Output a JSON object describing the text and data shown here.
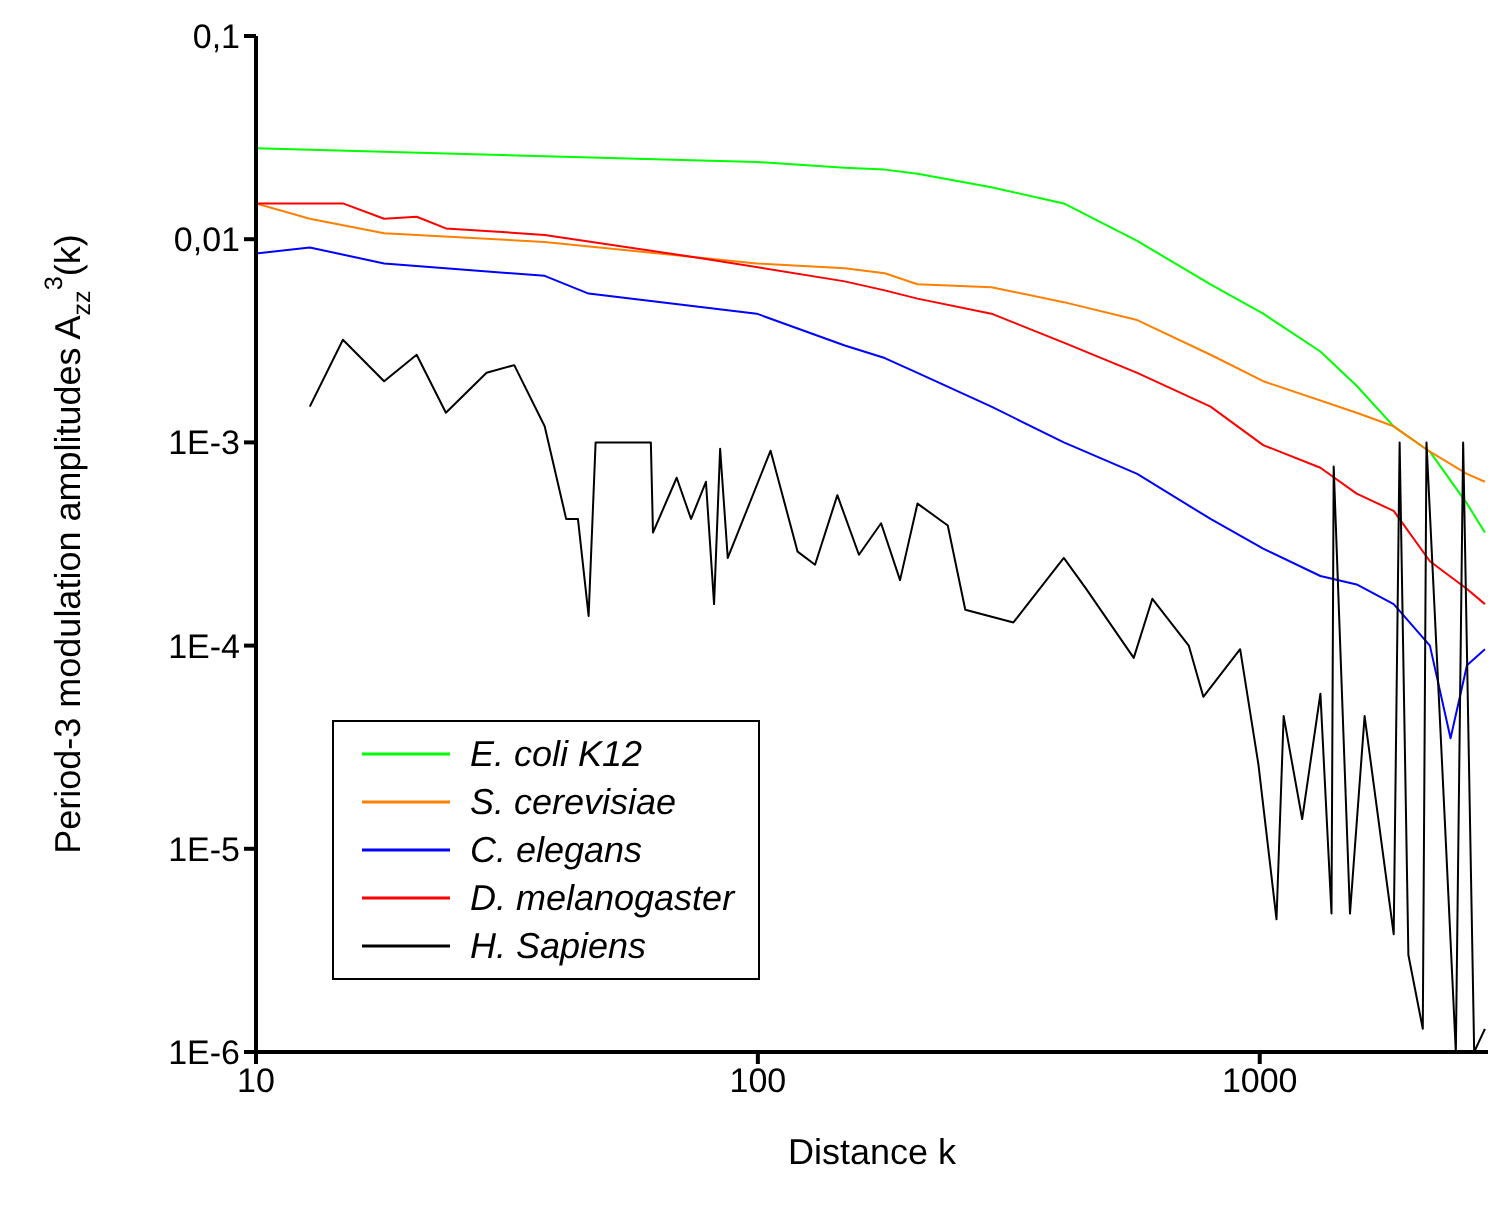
{
  "chart_data": {
    "type": "line",
    "xlabel": "Distance k",
    "ylabel": "Period-3 modulation amplitudes  A$_{zz}$$^{3}$(k)",
    "log": "xy",
    "grid": false,
    "legend": "bottom left",
    "marker": "none",
    "line_style": "solid",
    "xlim": [
      10,
      2850
    ],
    "xticks": [
      10,
      100,
      1000
    ],
    "ylim": [
      1e-06,
      0.1
    ],
    "yticks": [
      {
        "value": 0.1,
        "label": "0,1"
      },
      {
        "value": 0.01,
        "label": "0,01"
      },
      {
        "value": 0.001,
        "label": "1E-3"
      },
      {
        "value": 0.0001,
        "label": "1E-4"
      },
      {
        "value": 1e-05,
        "label": "1E-5"
      },
      {
        "value": 1e-06,
        "label": "1E-6"
      }
    ],
    "series": [
      {
        "name": "E. coli K12",
        "color": "#00ff00",
        "x": [
          10,
          99.5,
          149,
          179,
          208,
          292,
          407,
          570,
          798,
          1016,
          1321,
          1560,
          1849,
          2183,
          2588,
          2810
        ],
        "values": [
          0.028,
          0.024,
          0.0225,
          0.022,
          0.021,
          0.018,
          0.015,
          0.0098,
          0.006,
          0.0043,
          0.0028,
          0.0019,
          0.0012,
          0.0009,
          0.0005,
          0.00036
        ]
      },
      {
        "name": "S. cerevisiae",
        "color": "#ff8000",
        "x": [
          10,
          12.8,
          18,
          37.6,
          99.5,
          149,
          179,
          208,
          292,
          407,
          570,
          798,
          1016,
          1560,
          1849,
          2183,
          2588,
          2810
        ],
        "values": [
          0.015,
          0.0126,
          0.0107,
          0.0097,
          0.0076,
          0.0072,
          0.0068,
          0.006,
          0.0058,
          0.0049,
          0.004,
          0.0027,
          0.002,
          0.0014,
          0.0012,
          0.0009,
          0.0007,
          0.00064
        ]
      },
      {
        "name": "C. elegans",
        "color": "#0000ff",
        "x": [
          10,
          12.8,
          18,
          37.6,
          46,
          99.5,
          149,
          179,
          208,
          292,
          407,
          570,
          798,
          1016,
          1321,
          1560,
          1849,
          2183,
          2400,
          2588,
          2810
        ],
        "values": [
          0.0085,
          0.0091,
          0.0076,
          0.0066,
          0.0054,
          0.0043,
          0.003,
          0.0026,
          0.0022,
          0.0015,
          0.001,
          0.0007,
          0.00042,
          0.0003,
          0.00022,
          0.0002,
          0.00016,
          0.0001,
          3.5e-05,
          8e-05,
          9.6e-05
        ]
      },
      {
        "name": "D. melanogaster",
        "color": "#ff0000",
        "x": [
          10,
          14.9,
          18,
          20.9,
          23.9,
          37.6,
          78.8,
          149,
          179,
          208,
          292,
          407,
          570,
          798,
          1016,
          1321,
          1560,
          1849,
          2183,
          2588,
          2810
        ],
        "values": [
          0.015,
          0.015,
          0.0126,
          0.0129,
          0.0113,
          0.0105,
          0.008,
          0.0062,
          0.0056,
          0.0051,
          0.0043,
          0.0031,
          0.0022,
          0.0015,
          0.00097,
          0.00075,
          0.00056,
          0.00046,
          0.00026,
          0.00019,
          0.00016
        ]
      },
      {
        "name": "H. Sapiens",
        "color": "#000000",
        "x": [
          12.8,
          14.9,
          18,
          20.9,
          23.9,
          28.8,
          32.7,
          37.6,
          41.5,
          43.8,
          46,
          47.5,
          61.2,
          61.8,
          68.9,
          73.6,
          78.8,
          81.8,
          84.1,
          87.1,
          106,
          120,
          130,
          144,
          159,
          176,
          192,
          208,
          239,
          259,
          323,
          407,
          451,
          561,
          611,
          722,
          772,
          914,
          994,
          1080,
          1116,
          1215,
          1321,
          1390,
          1404,
          1513,
          1618,
          1849,
          1900,
          1978,
          2113,
          2149,
          2337,
          2459,
          2543,
          2675,
          2810
        ],
        "values": [
          0.0015,
          0.0032,
          0.002,
          0.0027,
          0.0014,
          0.0022,
          0.0024,
          0.0012,
          0.00042,
          0.00042,
          0.00014,
          0.001,
          0.001,
          0.00036,
          0.00067,
          0.00042,
          0.00064,
          0.00016,
          0.00093,
          0.00027,
          0.00091,
          0.00029,
          0.00025,
          0.00055,
          0.00028,
          0.0004,
          0.00021,
          0.0005,
          0.00039,
          0.00015,
          0.00013,
          0.00027,
          0.00019,
          8.7e-05,
          0.00017,
          0.0001,
          5.6e-05,
          9.6e-05,
          2.6e-05,
          4.5e-06,
          4.5e-05,
          1.4e-05,
          5.8e-05,
          4.8e-06,
          0.00076,
          4.8e-06,
          4.5e-05,
          3.8e-06,
          0.001,
          3e-06,
          1.3e-06,
          0.001,
          1.4e-05,
          1e-06,
          0.001,
          1e-06,
          1.3e-06
        ]
      }
    ]
  }
}
